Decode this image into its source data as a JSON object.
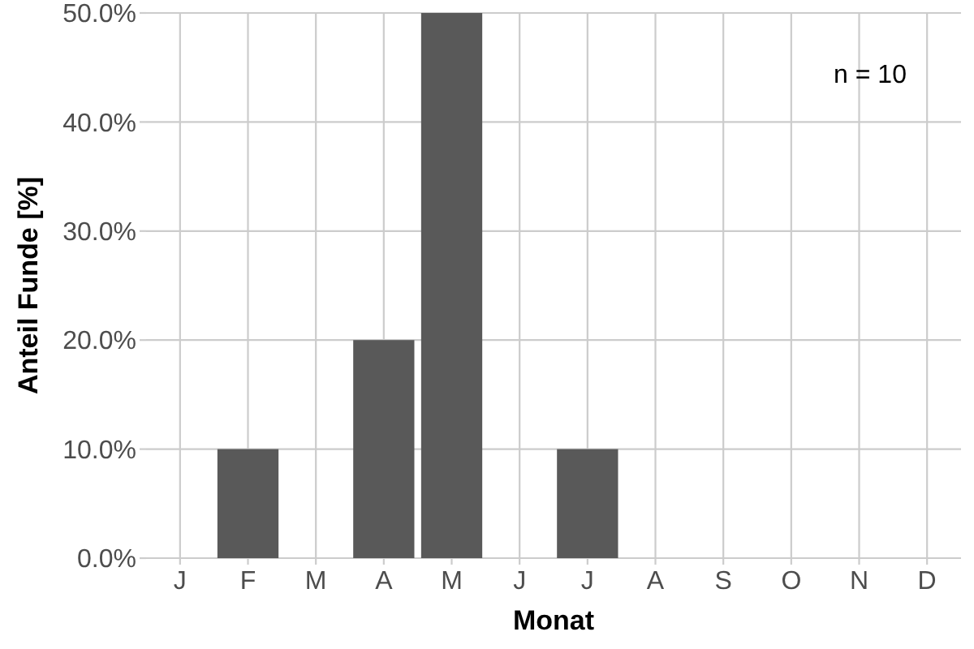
{
  "chart_data": {
    "type": "bar",
    "xlabel": "Monat",
    "ylabel": "Anteil Funde [%]",
    "categories": [
      "J",
      "F",
      "M",
      "A",
      "M",
      "J",
      "J",
      "A",
      "S",
      "O",
      "N",
      "D"
    ],
    "values": [
      0,
      10,
      0,
      20,
      50,
      0,
      10,
      0,
      0,
      0,
      0,
      0
    ],
    "color": "#595959",
    "ylim": [
      0,
      50
    ],
    "yticks": [
      {
        "value": 0,
        "label": "0.0%"
      },
      {
        "value": 10,
        "label": "10.0%"
      },
      {
        "value": 20,
        "label": "20.0%"
      },
      {
        "value": 30,
        "label": "30.0%"
      },
      {
        "value": 40,
        "label": "40.0%"
      },
      {
        "value": 50,
        "label": "50.0%"
      }
    ],
    "grid": true,
    "annotations": [
      "n = 10"
    ]
  }
}
